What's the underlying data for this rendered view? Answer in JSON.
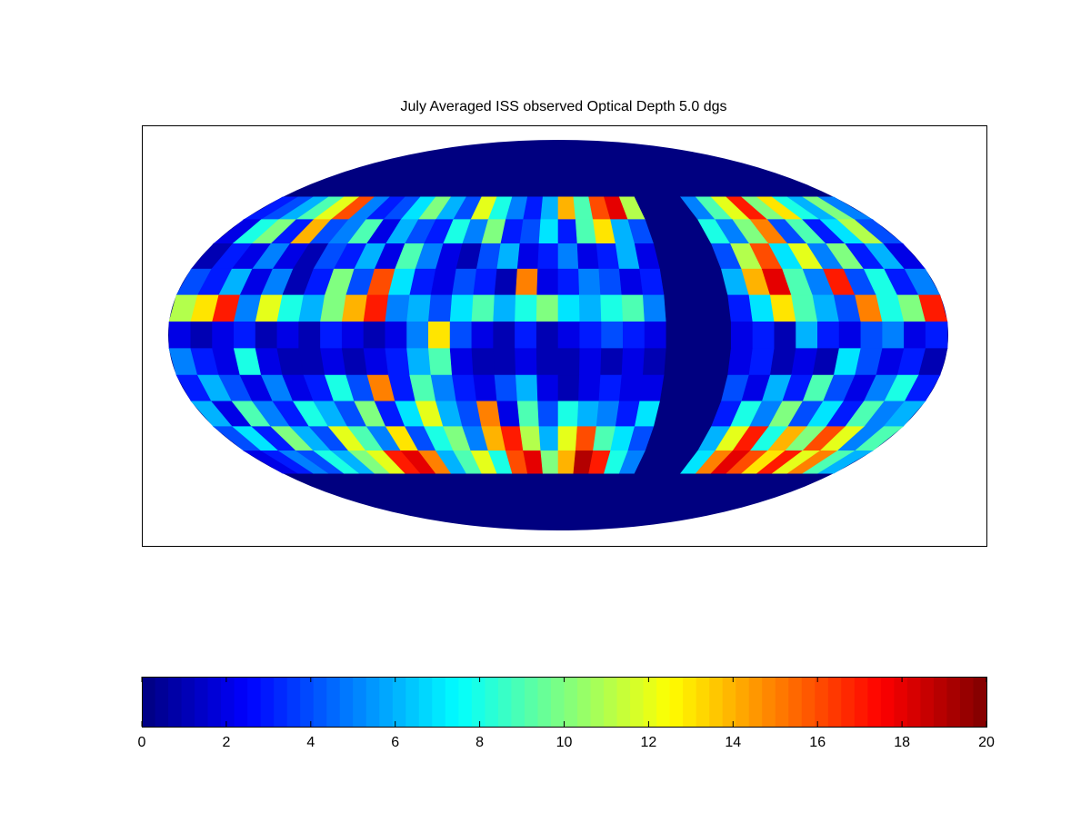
{
  "chart_data": {
    "type": "heatmap",
    "title": "July Averaged ISS observed Optical Depth 5.0 dgs",
    "clim": [
      0,
      20
    ],
    "colormap": "jet",
    "colorbar": {
      "ticks": [
        0,
        2,
        4,
        6,
        8,
        10,
        12,
        14,
        16,
        18,
        20
      ]
    },
    "values": [
      [
        3,
        4,
        6,
        9,
        12,
        16,
        5,
        3,
        4,
        7,
        10,
        6,
        4,
        12,
        8,
        5,
        3,
        6,
        14,
        9,
        16,
        18,
        11,
        0,
        0,
        0,
        5,
        9,
        12,
        17,
        10,
        13,
        8,
        6,
        10,
        5
      ],
      [
        2,
        8,
        10,
        3,
        14,
        4,
        5,
        9,
        2,
        6,
        4,
        3,
        8,
        5,
        10,
        3,
        4,
        7,
        3,
        9,
        13,
        6,
        4,
        0,
        0,
        0,
        8,
        5,
        10,
        15,
        4,
        9,
        3,
        7,
        11,
        4
      ],
      [
        1,
        3,
        2,
        5,
        2,
        1,
        4,
        3,
        6,
        2,
        9,
        5,
        2,
        1,
        4,
        6,
        2,
        3,
        5,
        2,
        3,
        6,
        2,
        0,
        0,
        0,
        4,
        11,
        16,
        7,
        12,
        5,
        10,
        3,
        6,
        2
      ],
      [
        4,
        3,
        6,
        2,
        5,
        1,
        3,
        10,
        4,
        16,
        7,
        3,
        2,
        4,
        3,
        1,
        15,
        2,
        3,
        5,
        4,
        2,
        3,
        0,
        0,
        0,
        6,
        14,
        18,
        9,
        5,
        17,
        4,
        8,
        3,
        5
      ],
      [
        11,
        13,
        17,
        5,
        12,
        8,
        6,
        10,
        14,
        17,
        5,
        6,
        4,
        7,
        9,
        6,
        8,
        10,
        7,
        6,
        8,
        9,
        5,
        0,
        0,
        0,
        3,
        7,
        13,
        9,
        6,
        4,
        15,
        8,
        10,
        17
      ],
      [
        2,
        1,
        2,
        3,
        1,
        2,
        1,
        3,
        2,
        1,
        2,
        5,
        13,
        4,
        2,
        1,
        3,
        1,
        2,
        3,
        4,
        3,
        2,
        0,
        0,
        0,
        2,
        3,
        1,
        6,
        3,
        2,
        4,
        5,
        2,
        3
      ],
      [
        5,
        3,
        2,
        8,
        2,
        1,
        1,
        2,
        1,
        2,
        3,
        6,
        9,
        2,
        1,
        1,
        2,
        1,
        1,
        2,
        1,
        2,
        1,
        0,
        0,
        0,
        2,
        3,
        1,
        2,
        1,
        7,
        4,
        2,
        3,
        1
      ],
      [
        3,
        6,
        4,
        2,
        5,
        2,
        3,
        8,
        4,
        15,
        3,
        9,
        5,
        3,
        2,
        4,
        6,
        2,
        1,
        2,
        3,
        2,
        2,
        0,
        0,
        0,
        4,
        2,
        6,
        3,
        9,
        4,
        2,
        5,
        8,
        3
      ],
      [
        6,
        2,
        9,
        5,
        3,
        8,
        6,
        4,
        10,
        3,
        7,
        12,
        6,
        4,
        15,
        2,
        9,
        4,
        8,
        6,
        5,
        3,
        7,
        0,
        0,
        0,
        3,
        8,
        5,
        10,
        4,
        7,
        3,
        9,
        5,
        6
      ],
      [
        4,
        7,
        3,
        10,
        6,
        4,
        12,
        9,
        5,
        13,
        4,
        8,
        10,
        5,
        14,
        17,
        11,
        6,
        12,
        16,
        9,
        7,
        4,
        0,
        0,
        0,
        6,
        12,
        17,
        8,
        14,
        10,
        16,
        12,
        5,
        9
      ],
      [
        2,
        3,
        5,
        4,
        8,
        6,
        10,
        12,
        17,
        18,
        15,
        6,
        9,
        12,
        8,
        16,
        18,
        10,
        14,
        19,
        17,
        8,
        5,
        0,
        0,
        0,
        7,
        15,
        18,
        16,
        13,
        17,
        12,
        15,
        9,
        6
      ]
    ]
  }
}
